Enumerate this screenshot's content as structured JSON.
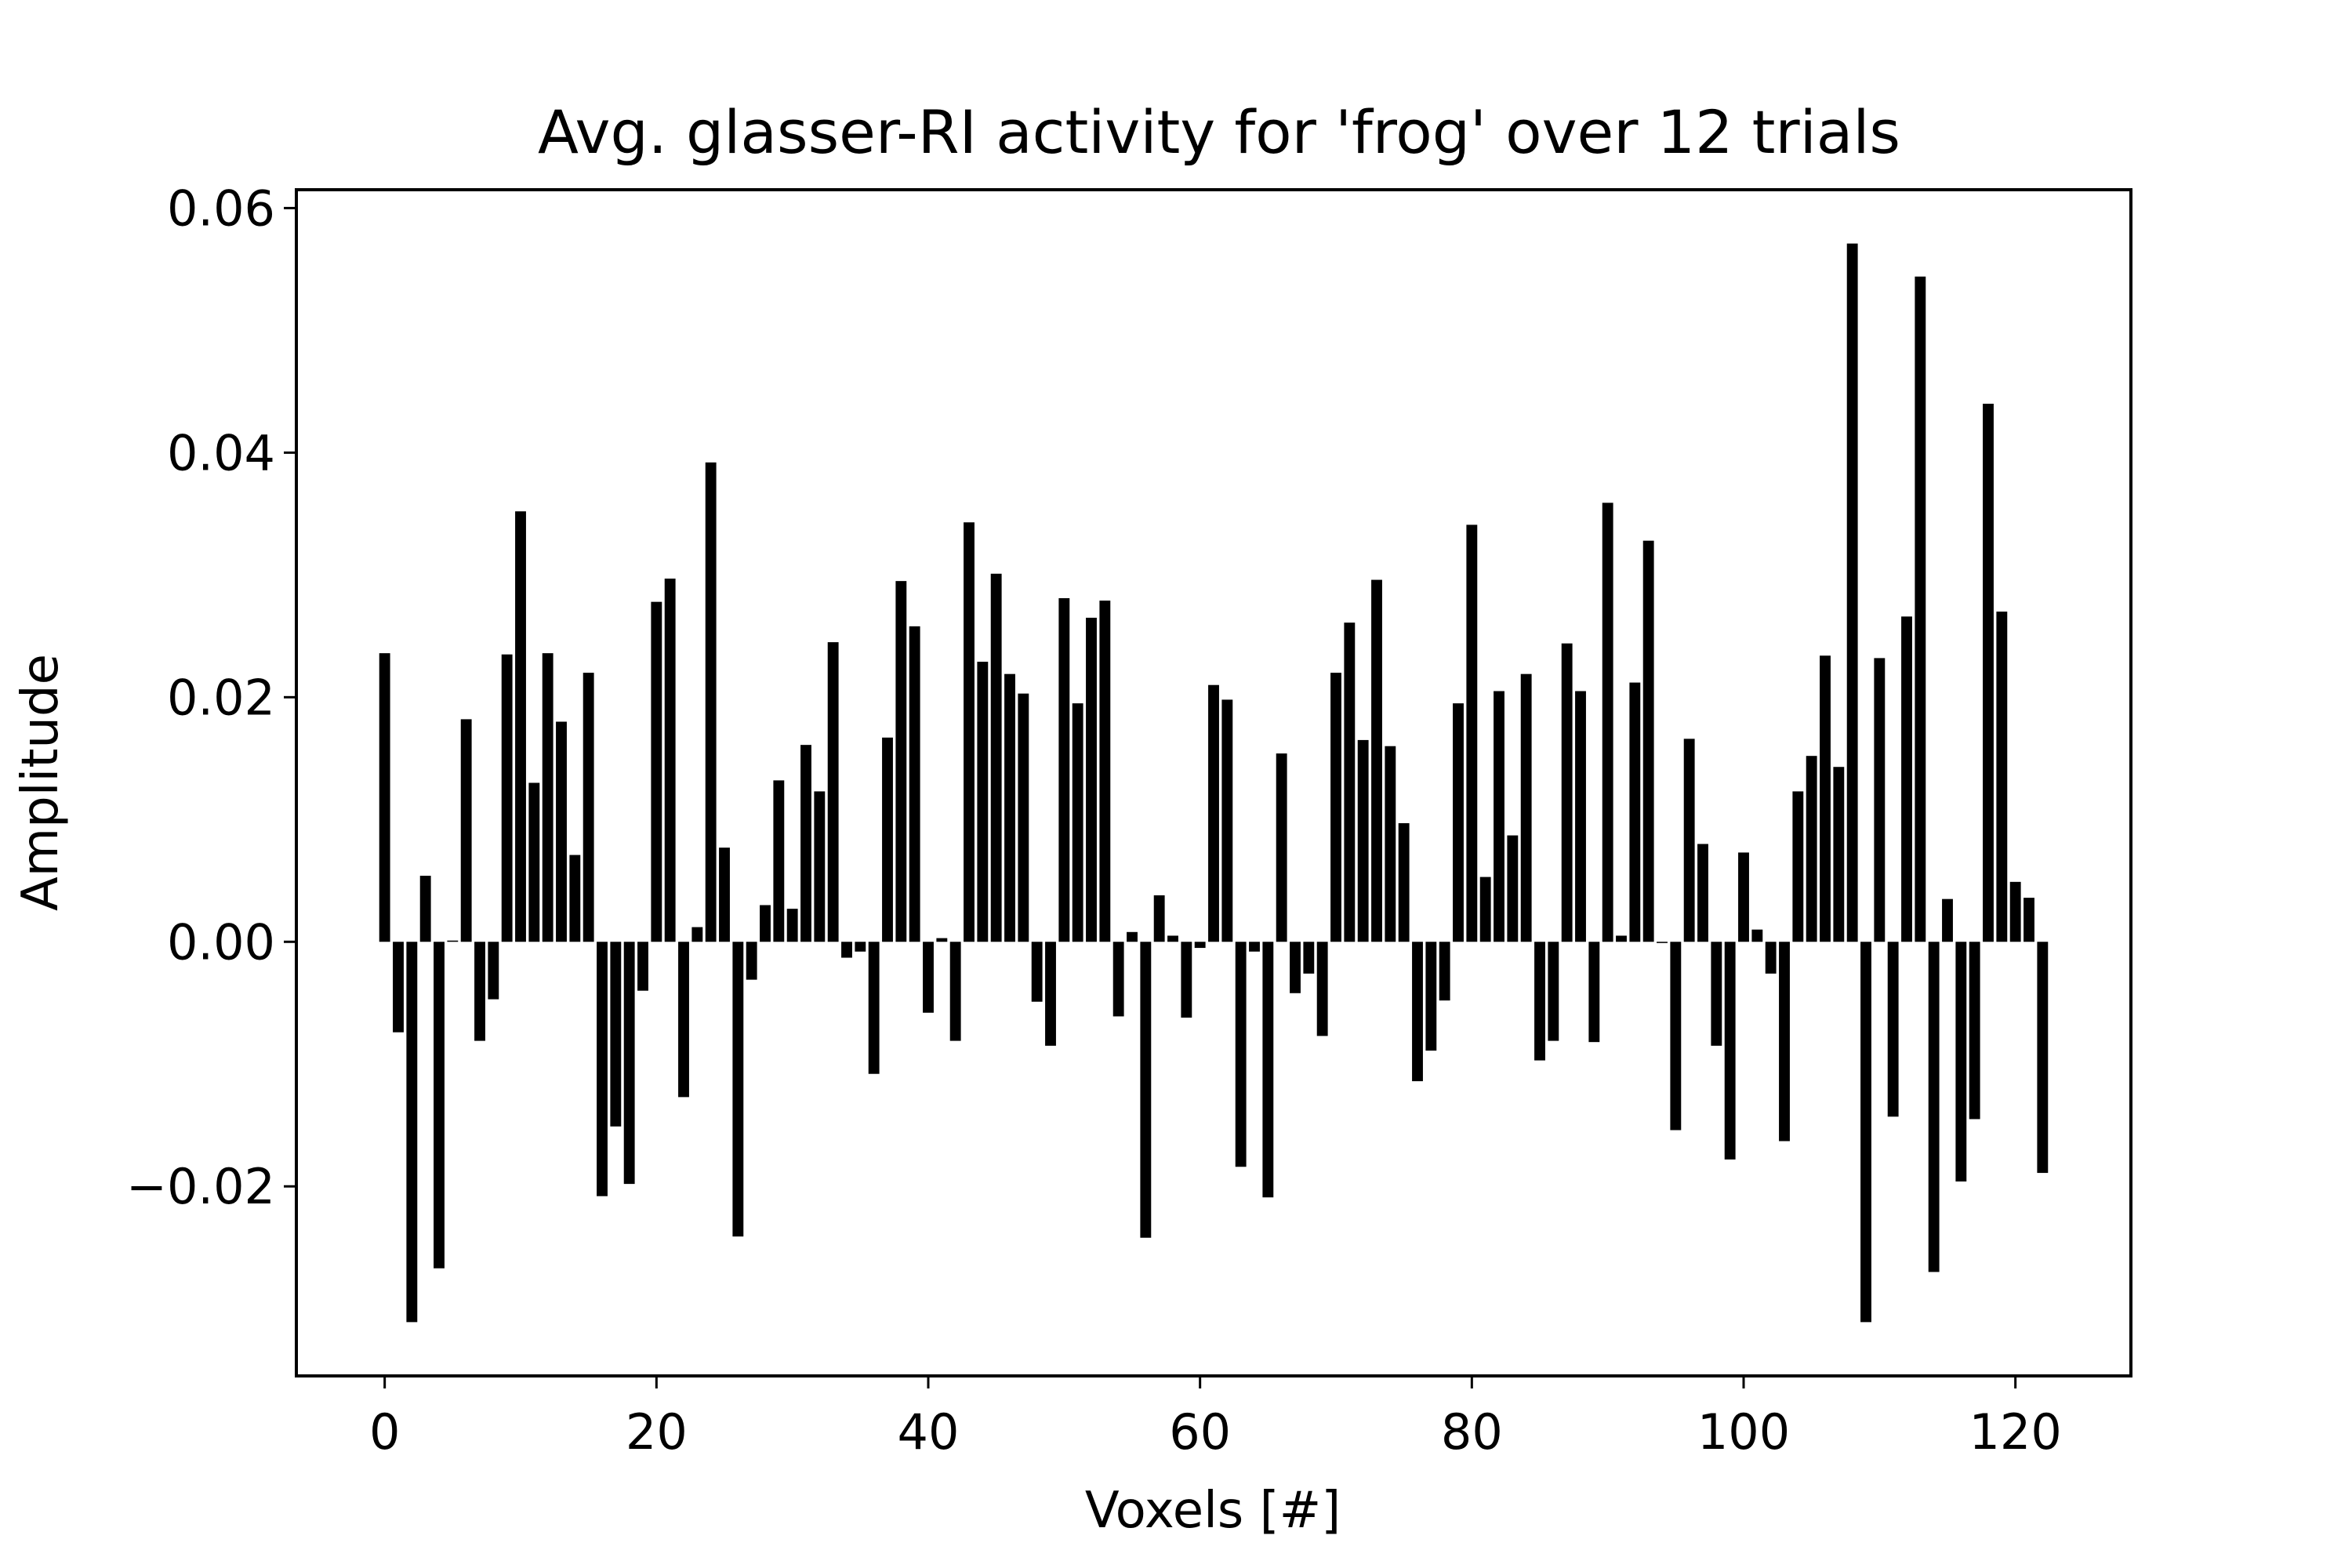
{
  "chart_data": {
    "type": "bar",
    "title": "Avg. glasser-RI activity for 'frog' over 12 trials",
    "xlabel": "Voxels [#]",
    "ylabel": "Amplitude",
    "xlim": [
      -6.5,
      128.5
    ],
    "ylim": [
      -0.0355,
      0.0615
    ],
    "xticks": [
      0,
      20,
      40,
      60,
      80,
      100,
      120
    ],
    "xtick_labels": [
      "0",
      "20",
      "40",
      "60",
      "80",
      "100",
      "120"
    ],
    "yticks": [
      -0.02,
      0.0,
      0.02,
      0.04,
      0.06
    ],
    "ytick_labels": [
      "−0.02",
      "0.00",
      "0.02",
      "0.04",
      "0.06"
    ],
    "grid": false,
    "bar_color": "#000000",
    "x": [
      0,
      1,
      2,
      3,
      4,
      5,
      6,
      7,
      8,
      9,
      10,
      11,
      12,
      13,
      14,
      15,
      16,
      17,
      18,
      19,
      20,
      21,
      22,
      23,
      24,
      25,
      26,
      27,
      28,
      29,
      30,
      31,
      32,
      33,
      34,
      35,
      36,
      37,
      38,
      39,
      40,
      41,
      42,
      43,
      44,
      45,
      46,
      47,
      48,
      49,
      50,
      51,
      52,
      53,
      54,
      55,
      56,
      57,
      58,
      59,
      60,
      61,
      62,
      63,
      64,
      65,
      66,
      67,
      68,
      69,
      70,
      71,
      72,
      73,
      74,
      75,
      76,
      77,
      78,
      79,
      80,
      81,
      82,
      83,
      84,
      85,
      86,
      87,
      88,
      89,
      90,
      91,
      92,
      93,
      94,
      95,
      96,
      97,
      98,
      99,
      100,
      101,
      102,
      103,
      104,
      105,
      106,
      107,
      108,
      109,
      110,
      111,
      112,
      113,
      114,
      115,
      116,
      117,
      118,
      119,
      120,
      121,
      122
    ],
    "values": [
      0.0236,
      -0.0074,
      -0.0311,
      0.0054,
      -0.0267,
      0.0001,
      0.0182,
      -0.0081,
      -0.0047,
      0.0235,
      0.0352,
      0.013,
      0.0236,
      0.018,
      0.0071,
      0.022,
      -0.0208,
      -0.0151,
      -0.0198,
      -0.004,
      0.0278,
      0.0297,
      -0.0127,
      0.0012,
      0.0392,
      0.0077,
      -0.0241,
      -0.0031,
      0.003,
      0.0132,
      0.0027,
      0.0161,
      0.0123,
      0.0245,
      -0.0013,
      -0.0008,
      -0.0108,
      0.0167,
      0.0295,
      0.0258,
      -0.0058,
      0.0003,
      -0.0081,
      0.0343,
      0.0229,
      0.0301,
      0.0219,
      0.0203,
      -0.0049,
      -0.0085,
      0.0281,
      0.0195,
      0.0265,
      0.0279,
      -0.0061,
      0.0008,
      -0.0242,
      0.0038,
      0.0005,
      -0.0062,
      -0.0005,
      0.021,
      0.0198,
      -0.0184,
      -0.0008,
      -0.0209,
      0.0154,
      -0.0042,
      -0.0026,
      -0.0077,
      0.022,
      0.0261,
      0.0165,
      0.0296,
      0.016,
      0.0097,
      -0.0114,
      -0.0089,
      -0.0048,
      0.0195,
      0.0341,
      0.0053,
      0.0205,
      0.0087,
      0.0219,
      -0.0097,
      -0.0081,
      0.0244,
      0.0205,
      -0.0082,
      0.0359,
      0.0005,
      0.0212,
      0.0328,
      -0.0001,
      -0.0154,
      0.0166,
      0.008,
      -0.0085,
      -0.0178,
      0.0073,
      0.001,
      -0.0026,
      -0.0163,
      0.0123,
      0.0152,
      0.0234,
      0.0143,
      0.0571,
      -0.0311,
      0.0232,
      -0.0143,
      0.0266,
      0.0544,
      -0.027,
      0.0035,
      -0.0196,
      -0.0145,
      0.044,
      0.027,
      0.0049,
      0.0036,
      -0.0189
    ]
  }
}
